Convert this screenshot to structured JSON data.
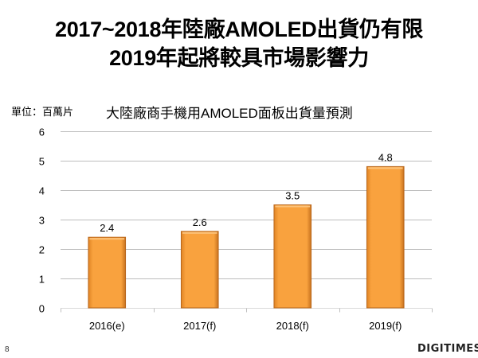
{
  "slide": {
    "title_line1": "2017~2018年陸廠AMOLED出貨仍有限",
    "title_line2": "2019年起將較具市場影響力",
    "page_number": "8",
    "logo_text": "DIGITIMES"
  },
  "chart_data": {
    "type": "bar",
    "title": "大陸廠商手機用AMOLED面板出貨量預測",
    "unit_label": "單位：百萬片",
    "xlabel": "",
    "ylabel": "",
    "categories": [
      "2016(e)",
      "2017(f)",
      "2018(f)",
      "2019(f)"
    ],
    "values": [
      2.4,
      2.6,
      3.5,
      4.8
    ],
    "data_labels": [
      "2.4",
      "2.6",
      "3.5",
      "4.8"
    ],
    "ylim": [
      0,
      6
    ],
    "yticks": [
      0,
      1,
      2,
      3,
      4,
      5,
      6
    ],
    "grid": true,
    "legend": "none",
    "colors": {
      "bar_fill": "#F9A23E",
      "bar_edge": "#B8661C",
      "grid": "#BFBFBF"
    }
  }
}
